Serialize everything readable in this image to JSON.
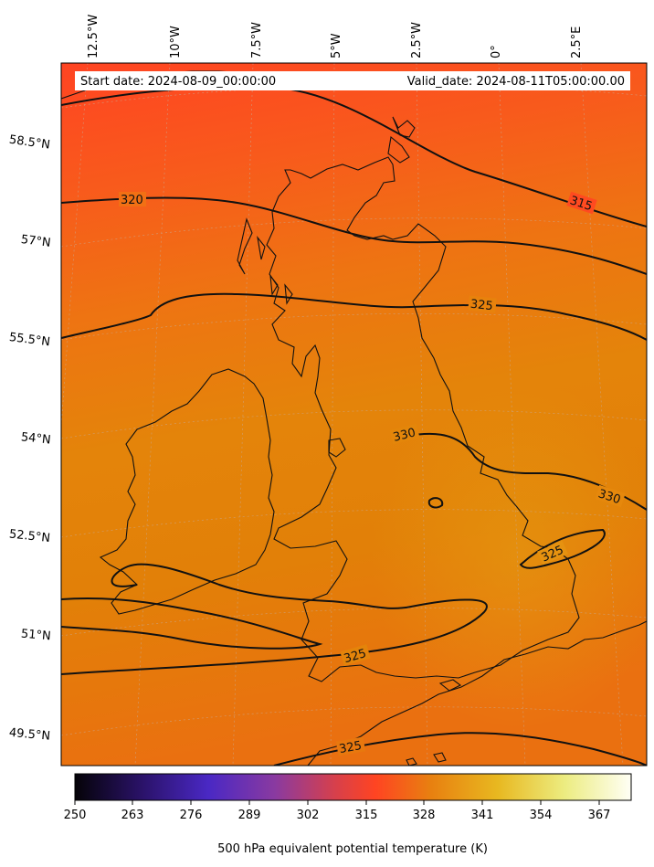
{
  "header": {
    "start_date": "Start date: 2024-08-09_00:00:00",
    "valid_date": "Valid_date: 2024-08-11T05:00:00.00"
  },
  "longitude_labels": [
    "12.5°W",
    "10°W",
    "7.5°W",
    "5°W",
    "2.5°W",
    "0°",
    "2.5°E"
  ],
  "latitude_labels": [
    "58.5°N",
    "57°N",
    "55.5°N",
    "54°N",
    "52.5°N",
    "51°N",
    "49.5°N"
  ],
  "contour_labels": [
    "320",
    "315",
    "325",
    "330",
    "330",
    "325",
    "325",
    "325"
  ],
  "colorbar": {
    "label": "500 hPa equivalent potential temperature (K)",
    "ticks": [
      "250",
      "263",
      "276",
      "289",
      "302",
      "315",
      "328",
      "341",
      "354",
      "367"
    ],
    "colors": [
      "#050308",
      "#2a1268",
      "#4a28c4",
      "#8a3aa0",
      "#c8405a",
      "#ff4422",
      "#e88010",
      "#e8b820",
      "#ecec80",
      "#fffff5"
    ]
  },
  "field_colors": {
    "north": "#ff4422",
    "mid": "#f06a14",
    "south": "#e58208",
    "center": "#e08a0a"
  }
}
